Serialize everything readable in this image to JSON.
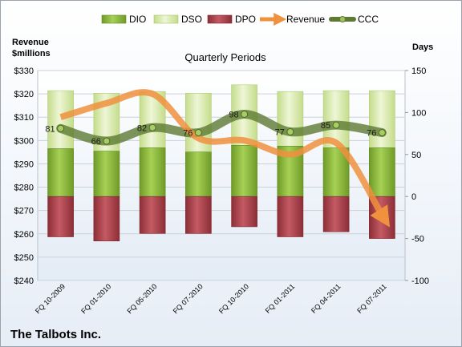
{
  "company": "The Talbots Inc.",
  "colors": {
    "dio": "#8ab83a",
    "dso": "#d7e8a8",
    "dpo": "#a63f48",
    "revenue": "#f0913e",
    "ccc": "#5d7a32"
  },
  "chart_data": {
    "type": "bar",
    "title": "Quarterly Periods",
    "left_axis_label": "Revenue\n$millions",
    "right_axis_label": "Days",
    "categories": [
      "FQ 10-2009",
      "FQ 01-2010",
      "FQ 05-2010",
      "FQ 07-2010",
      "FQ 10-2010",
      "FQ 01-2011",
      "FQ 04-2011",
      "FQ 07-2011"
    ],
    "left_ylim": [
      240,
      330
    ],
    "left_ticks": [
      "$240",
      "$250",
      "$260",
      "$270",
      "$280",
      "$290",
      "$300",
      "$310",
      "$320",
      "$330"
    ],
    "right_ylim": [
      -100,
      150
    ],
    "right_ticks": [
      "-100",
      "-50",
      "0",
      "50",
      "100",
      "150"
    ],
    "legend": [
      "DIO",
      "DSO",
      "DPO",
      "Revenue",
      "CCC"
    ],
    "legend_position": "top",
    "series": [
      {
        "name": "DIO",
        "axis": "right",
        "values": [
          57,
          54,
          58,
          53,
          61,
          60,
          58,
          58
        ]
      },
      {
        "name": "DSO",
        "axis": "right",
        "values": [
          126,
          123,
          125,
          123,
          133,
          125,
          126,
          126
        ]
      },
      {
        "name": "DPO",
        "axis": "right",
        "values": [
          -48,
          -53,
          -44,
          -44,
          -36,
          -48,
          -42,
          -50
        ]
      },
      {
        "name": "Revenue",
        "axis": "left",
        "values": [
          310,
          316,
          320,
          301,
          300,
          294,
          299,
          268
        ]
      },
      {
        "name": "CCC",
        "axis": "right",
        "values": [
          81,
          66,
          82,
          76,
          98,
          77,
          85,
          76
        ]
      }
    ]
  }
}
